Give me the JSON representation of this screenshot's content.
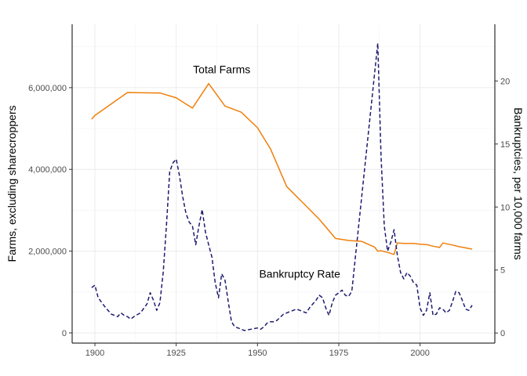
{
  "chart_data": {
    "type": "line",
    "title": "",
    "xlabel": "",
    "ylabel_left": "Farms, excluding sharecroppers",
    "ylabel_right": "Bankruptcies, per 10,000 farms",
    "xlim": [
      1893,
      2023
    ],
    "xticks": [
      1900,
      1925,
      1950,
      1975,
      2000
    ],
    "ylim_left": [
      -250000,
      7550000
    ],
    "yticks_left": [
      0,
      2000000,
      4000000,
      6000000
    ],
    "ytick_labels_left": [
      "0",
      "2,000,000",
      "4,000,000",
      "6,000,000"
    ],
    "ylim_right": [
      -0.8,
      24.5
    ],
    "yticks_right": [
      0,
      5,
      10,
      15,
      20
    ],
    "grid": true,
    "legend": "none",
    "annotations": [
      {
        "text": "Total Farms",
        "x": 1939,
        "y_left": 6450000
      },
      {
        "text": "Bankruptcy Rate",
        "x": 1963,
        "y_left": 1450000
      }
    ],
    "series": [
      {
        "axis": "left",
        "color": "#f07f0a",
        "dash": "solid",
        "x": [
          1899,
          1900,
          1910,
          1920,
          1925,
          1930,
          1935,
          1940,
          1945,
          1950,
          1954,
          1959,
          1964,
          1969,
          1974,
          1978,
          1982,
          1986,
          1987,
          1988,
          1990,
          1992,
          1993,
          1995,
          1998,
          2000,
          2002,
          2004,
          2006,
          2007,
          2010,
          2012,
          2016
        ],
        "y": [
          5230000,
          5320000,
          5880000,
          5870000,
          5750000,
          5500000,
          6100000,
          5550000,
          5400000,
          5020000,
          4500000,
          3580000,
          3180000,
          2780000,
          2310000,
          2260000,
          2240000,
          2100000,
          2000000,
          2010000,
          1970000,
          1920000,
          2200000,
          2190000,
          2190000,
          2170000,
          2160000,
          2120000,
          2090000,
          2200000,
          2150000,
          2110000,
          2050000
        ]
      },
      {
        "axis": "right",
        "color": "#1e1b6e",
        "dash": "dashed",
        "x": [
          1899,
          1900,
          1901,
          1903,
          1905,
          1906,
          1907,
          1908,
          1909,
          1910,
          1911,
          1912,
          1914,
          1916,
          1917,
          1918,
          1919,
          1920,
          1921,
          1922,
          1923,
          1924,
          1925,
          1926,
          1927,
          1928,
          1929,
          1930,
          1931,
          1932,
          1933,
          1934,
          1935,
          1936,
          1937,
          1938,
          1939,
          1940,
          1941,
          1942,
          1943,
          1944,
          1945,
          1946,
          1948,
          1950,
          1951,
          1952,
          1953,
          1954,
          1955,
          1956,
          1958,
          1960,
          1962,
          1964,
          1965,
          1966,
          1967,
          1968,
          1969,
          1970,
          1971,
          1972,
          1973,
          1974,
          1975,
          1976,
          1977,
          1978,
          1979,
          1987,
          1988,
          1989,
          1990,
          1991,
          1992,
          1993,
          1994,
          1995,
          1996,
          1997,
          1998,
          1999,
          2000,
          2001,
          2002,
          2003,
          2004,
          2005,
          2006,
          2007,
          2008,
          2009,
          2010,
          2011,
          2012,
          2013,
          2014,
          2015,
          2016
        ],
        "y": [
          3.6,
          3.8,
          2.8,
          2.1,
          1.5,
          1.4,
          1.3,
          1.6,
          1.4,
          1.3,
          1.1,
          1.3,
          1.6,
          2.3,
          3.2,
          2.6,
          1.8,
          2.4,
          4.8,
          8.5,
          12.8,
          13.5,
          13.8,
          12.5,
          10.8,
          9.5,
          8.8,
          8.5,
          7.0,
          8.5,
          9.8,
          8.0,
          7.0,
          6.0,
          4.0,
          2.8,
          4.7,
          4.2,
          2.5,
          0.9,
          0.5,
          0.4,
          0.3,
          0.2,
          0.3,
          0.4,
          0.3,
          0.5,
          0.8,
          0.9,
          0.9,
          1.0,
          1.5,
          1.7,
          1.9,
          1.7,
          1.6,
          2.0,
          2.3,
          2.6,
          3.0,
          2.8,
          2.0,
          1.4,
          2.4,
          3.0,
          3.2,
          3.4,
          3.0,
          2.9,
          3.3,
          23.0,
          14.0,
          8.5,
          6.5,
          7.2,
          8.2,
          6.2,
          4.8,
          4.3,
          4.8,
          4.5,
          4.0,
          3.8,
          2.0,
          1.4,
          1.8,
          3.2,
          1.4,
          1.5,
          2.0,
          1.9,
          1.6,
          1.8,
          2.5,
          3.3,
          3.2,
          2.6,
          1.9,
          1.8,
          2.2
        ]
      }
    ]
  }
}
